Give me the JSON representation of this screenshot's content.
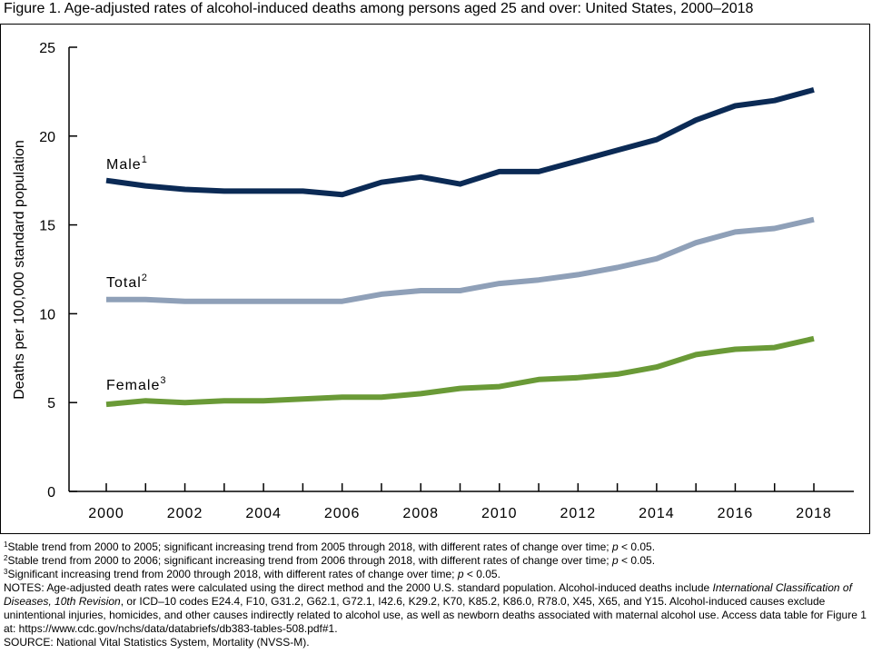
{
  "figure": {
    "title": "Figure 1. Age-adjusted rates of alcohol-induced deaths among persons aged 25 and over: United States, 2000–2018"
  },
  "chart_data": {
    "type": "line",
    "x": [
      2000,
      2001,
      2002,
      2003,
      2004,
      2005,
      2006,
      2007,
      2008,
      2009,
      2010,
      2011,
      2012,
      2013,
      2014,
      2015,
      2016,
      2017,
      2018
    ],
    "xticks": [
      2000,
      2002,
      2004,
      2006,
      2008,
      2010,
      2012,
      2014,
      2016,
      2018
    ],
    "yticks": [
      0,
      5,
      10,
      15,
      20,
      25
    ],
    "xlim": [
      2000,
      2018
    ],
    "ylim": [
      0,
      25
    ],
    "xlabel": "",
    "ylabel": "Deaths per 100,000 standard population",
    "grid": false,
    "legend": "inline labels",
    "series": [
      {
        "name": "Male",
        "footnote": "1",
        "color": "#0b2a55",
        "values": [
          17.5,
          17.2,
          17.0,
          16.9,
          16.9,
          16.9,
          16.7,
          17.4,
          17.7,
          17.3,
          18.0,
          18.0,
          18.6,
          19.2,
          19.8,
          20.9,
          21.7,
          22.0,
          22.6
        ]
      },
      {
        "name": "Total",
        "footnote": "2",
        "color": "#8fa0b8",
        "values": [
          10.8,
          10.8,
          10.7,
          10.7,
          10.7,
          10.7,
          10.7,
          11.1,
          11.3,
          11.3,
          11.7,
          11.9,
          12.2,
          12.6,
          13.1,
          14.0,
          14.6,
          14.8,
          15.3
        ]
      },
      {
        "name": "Female",
        "footnote": "3",
        "color": "#6a9a37",
        "values": [
          4.9,
          5.1,
          5.0,
          5.1,
          5.1,
          5.2,
          5.3,
          5.3,
          5.5,
          5.8,
          5.9,
          6.3,
          6.4,
          6.6,
          7.0,
          7.7,
          8.0,
          8.1,
          8.6
        ]
      }
    ]
  },
  "notes": {
    "fn1": {
      "sup": "1",
      "text": "Stable trend from 2000 to 2005; significant increasing trend from 2005 through 2018, with different rates of change over time; ",
      "p": "p",
      "tail": " < 0.05."
    },
    "fn2": {
      "sup": "2",
      "text": "Stable trend from 2000 to 2006; significant increasing trend from 2006 through 2018, with different rates of change over time; ",
      "p": "p",
      "tail": " < 0.05."
    },
    "fn3": {
      "sup": "3",
      "text": "Significant increasing trend from 2000 through 2018, with different rates of change over time; ",
      "p": "p",
      "tail": " < 0.05."
    },
    "notes_a": "NOTES: Age-adjusted death rates were calculated using the direct method and the 2000 U.S. standard population. Alcohol-induced deaths include ",
    "notes_icd": "International Classification of Diseases, 10th Revision",
    "notes_b": ", or ICD–10 codes E24.4, F10, G31.2, G62.1, G72.1, I42.6, K29.2, K70, K85.2, K86.0, R78.0, X45, X65, and Y15. Alcohol-induced causes exclude unintentional injuries, homicides, and other causes indirectly related to alcohol use, as well as newborn deaths associated with maternal alcohol use. Access data table for Figure 1 at: https://www.cdc.gov/nchs/data/databriefs/db383-tables-508.pdf#1.",
    "source": "SOURCE: National Vital Statistics System, Mortality (NVSS-M)."
  }
}
